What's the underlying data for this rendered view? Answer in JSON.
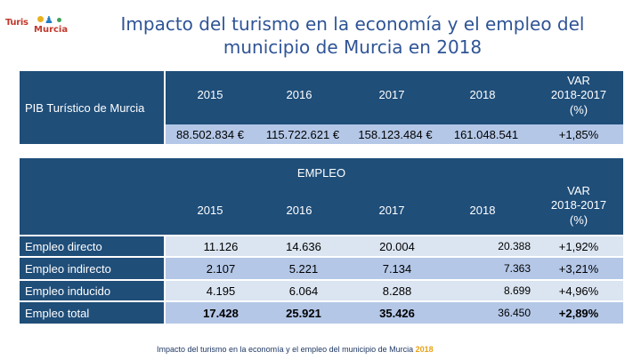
{
  "title": "Impacto del turismo en la economía y el empleo del municipio de Murcia en 2018",
  "logo_text": "TurisMo Murcia",
  "pib": {
    "row_label": "PIB Turístico de Murcia",
    "var_label": "VAR",
    "years": [
      "2015",
      "2016",
      "2017",
      "2018"
    ],
    "var_col": "2018-2017 (%)",
    "values": [
      "88.502.834 €",
      "115.722.621 €",
      "158.123.484 €",
      "161.048.541",
      "+1,85%"
    ]
  },
  "empleo": {
    "section_title": "EMPLEO",
    "var_label": "VAR",
    "years": [
      "2015",
      "2016",
      "2017",
      "2018"
    ],
    "var_col": "2018-2017 (%)",
    "rows": [
      {
        "label": "Empleo directo",
        "values": [
          "11.126",
          "14.636",
          "20.004",
          "20.388",
          "+1,92%"
        ]
      },
      {
        "label": "Empleo  indirecto",
        "values": [
          "2.107",
          "5.221",
          "7.134",
          "7.363",
          "+3,21%"
        ]
      },
      {
        "label": "Empleo inducido",
        "values": [
          "4.195",
          "6.064",
          "8.288",
          "8.699",
          "+4,96%"
        ]
      },
      {
        "label": "Empleo total",
        "values": [
          "17.428",
          "25.921",
          "35.426",
          "36.450",
          "+2,89%"
        ]
      }
    ]
  },
  "footer": {
    "text": "Impacto del turismo en la economía y el empleo del municipio de Murcia ",
    "year": "2018"
  }
}
